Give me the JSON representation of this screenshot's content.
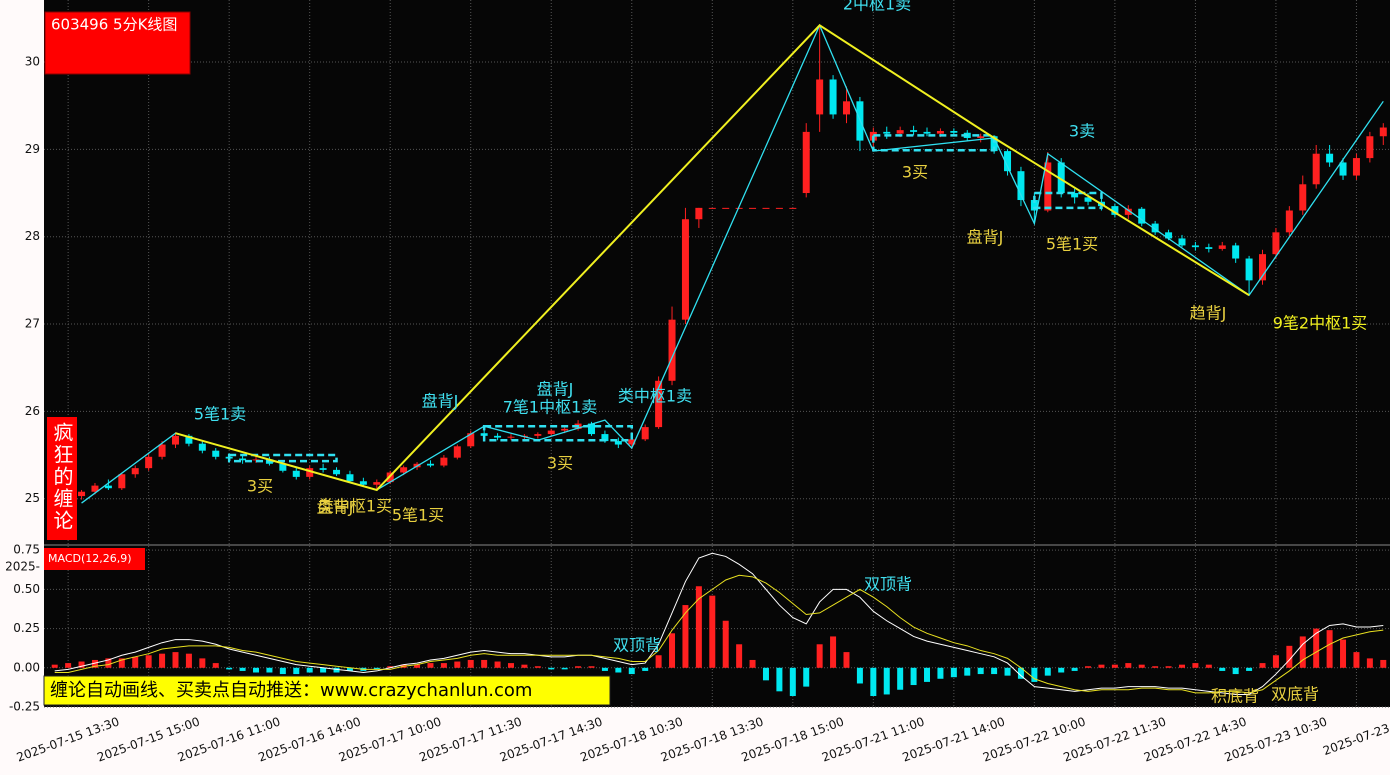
{
  "chart_data": [
    {
      "type": "candlestick",
      "title": "603496 5分K线图",
      "side_label": "疯狂的缠论",
      "categories": [
        null,
        "2025-07-15 13:30",
        null,
        null,
        null,
        null,
        null,
        "2025-07-15 15:00",
        null,
        null,
        null,
        null,
        null,
        "2025-07-16 11:00",
        null,
        null,
        null,
        null,
        null,
        "2025-07-16 14:00",
        null,
        null,
        null,
        null,
        null,
        "2025-07-17 10:00",
        null,
        null,
        null,
        null,
        null,
        "2025-07-17 11:30",
        null,
        null,
        null,
        null,
        null,
        "2025-07-17 14:30",
        null,
        null,
        null,
        null,
        null,
        "2025-07-18 10:30",
        null,
        null,
        null,
        null,
        null,
        "2025-07-18 13:30",
        null,
        null,
        null,
        null,
        null,
        "2025-07-18 15:00",
        null,
        null,
        null,
        null,
        null,
        "2025-07-21 11:00",
        null,
        null,
        null,
        null,
        null,
        "2025-07-21 14:00",
        null,
        null,
        null,
        null,
        null,
        "2025-07-22 10:00",
        null,
        null,
        null,
        null,
        null,
        "2025-07-22 11:30",
        null,
        null,
        null,
        null,
        null,
        "2025-07-22 14:30",
        null,
        null,
        null,
        null,
        null,
        "2025-07-23 10:30",
        null,
        null,
        null,
        null,
        null,
        "2025-07-23",
        null,
        null
      ],
      "open": [
        24.88,
        24.95,
        25.03,
        25.08,
        25.15,
        25.12,
        25.28,
        25.35,
        25.48,
        25.62,
        25.72,
        25.63,
        25.55,
        25.48,
        25.46,
        25.44,
        25.45,
        25.4,
        25.32,
        25.25,
        25.35,
        25.33,
        25.28,
        25.2,
        25.16,
        25.19,
        25.3,
        25.36,
        25.4,
        25.38,
        25.47,
        25.6,
        25.75,
        25.72,
        25.7,
        25.71,
        25.72,
        25.74,
        25.78,
        25.8,
        25.86,
        25.74,
        25.66,
        25.62,
        25.68,
        25.82,
        26.35,
        27.05,
        28.2,
        28.33,
        28.33,
        28.33,
        28.33,
        28.33,
        28.33,
        28.33,
        28.5,
        29.4,
        29.8,
        29.4,
        29.55,
        29.1,
        29.2,
        29.18,
        29.22,
        29.2,
        29.18,
        29.21,
        29.19,
        29.13,
        29.15,
        28.98,
        28.75,
        28.42,
        28.3,
        28.85,
        28.5,
        28.45,
        28.4,
        28.35,
        28.25,
        28.32,
        28.15,
        28.05,
        27.98,
        27.9,
        27.88,
        27.86,
        27.9,
        27.75,
        27.5,
        27.8,
        28.05,
        28.3,
        28.6,
        28.95,
        28.85,
        28.7,
        28.9,
        29.15
      ],
      "high": [
        24.98,
        25.06,
        25.1,
        25.18,
        25.22,
        25.3,
        25.38,
        25.52,
        25.66,
        25.76,
        25.74,
        25.66,
        25.58,
        25.52,
        25.5,
        25.49,
        25.48,
        25.43,
        25.36,
        25.38,
        25.4,
        25.36,
        25.32,
        25.24,
        25.22,
        25.32,
        25.38,
        25.42,
        25.44,
        25.5,
        25.62,
        25.78,
        25.84,
        25.75,
        25.74,
        25.74,
        25.76,
        25.8,
        25.83,
        25.9,
        25.88,
        25.78,
        25.7,
        25.7,
        25.85,
        26.4,
        27.2,
        28.33,
        28.33,
        28.33,
        28.33,
        28.33,
        28.33,
        28.33,
        28.33,
        28.33,
        29.3,
        30.42,
        29.85,
        29.72,
        29.6,
        29.25,
        29.26,
        29.26,
        29.27,
        29.25,
        29.24,
        29.24,
        29.22,
        29.18,
        29.16,
        29.0,
        28.8,
        28.5,
        28.97,
        28.9,
        28.55,
        28.5,
        28.46,
        28.38,
        28.36,
        28.34,
        28.18,
        28.08,
        28.02,
        27.94,
        27.92,
        27.94,
        27.93,
        27.78,
        27.85,
        28.1,
        28.35,
        28.7,
        29.05,
        29.05,
        28.9,
        28.95,
        29.2,
        29.3
      ],
      "low": [
        24.84,
        24.92,
        24.99,
        25.05,
        25.1,
        25.1,
        25.24,
        25.32,
        25.45,
        25.58,
        25.6,
        25.52,
        25.45,
        25.42,
        25.4,
        25.41,
        25.38,
        25.3,
        25.22,
        25.22,
        25.3,
        25.26,
        25.18,
        25.14,
        25.1,
        25.17,
        25.27,
        25.33,
        25.36,
        25.36,
        25.45,
        25.58,
        25.7,
        25.67,
        25.67,
        25.68,
        25.69,
        25.72,
        25.75,
        25.78,
        25.72,
        25.64,
        25.58,
        25.57,
        25.66,
        25.8,
        26.3,
        27.0,
        28.1,
        28.33,
        28.33,
        28.33,
        28.33,
        28.33,
        28.33,
        28.33,
        28.45,
        29.2,
        29.35,
        29.3,
        28.98,
        28.98,
        29.12,
        29.14,
        29.16,
        29.15,
        29.14,
        29.15,
        29.1,
        29.08,
        28.95,
        28.7,
        28.35,
        28.15,
        28.28,
        28.45,
        28.38,
        28.36,
        28.3,
        28.22,
        28.2,
        28.12,
        28.02,
        27.96,
        27.88,
        27.84,
        27.82,
        27.84,
        27.7,
        27.33,
        27.45,
        27.75,
        28.0,
        28.25,
        28.55,
        28.8,
        28.65,
        28.65,
        28.85,
        29.05
      ],
      "close": [
        24.95,
        25.03,
        25.08,
        25.15,
        25.12,
        25.28,
        25.35,
        25.48,
        25.62,
        25.72,
        25.63,
        25.55,
        25.48,
        25.46,
        25.44,
        25.45,
        25.4,
        25.32,
        25.25,
        25.35,
        25.33,
        25.28,
        25.2,
        25.16,
        25.19,
        25.3,
        25.36,
        25.4,
        25.38,
        25.47,
        25.6,
        25.75,
        25.72,
        25.7,
        25.71,
        25.72,
        25.74,
        25.78,
        25.8,
        25.86,
        25.74,
        25.66,
        25.62,
        25.68,
        25.82,
        26.35,
        27.05,
        28.2,
        28.33,
        28.33,
        28.33,
        28.33,
        28.33,
        28.33,
        28.33,
        28.33,
        29.2,
        29.8,
        29.4,
        29.55,
        29.1,
        29.2,
        29.18,
        29.22,
        29.2,
        29.18,
        29.21,
        29.19,
        29.13,
        29.15,
        28.98,
        28.75,
        28.42,
        28.3,
        28.85,
        28.5,
        28.45,
        28.4,
        28.35,
        28.25,
        28.32,
        28.15,
        28.05,
        27.98,
        27.9,
        27.88,
        27.86,
        27.9,
        27.75,
        27.5,
        27.8,
        28.05,
        28.3,
        28.6,
        28.95,
        28.85,
        28.7,
        28.9,
        29.15,
        29.25
      ],
      "up_color": "#ff2020",
      "down_color": "#00e8f0",
      "ylim": [
        24.47,
        30.71
      ],
      "yticks": [
        25,
        26,
        27,
        28,
        29,
        30
      ],
      "grid": true,
      "strokes": [
        {
          "color": "#30e0f0",
          "x": [
            2,
            9,
            24,
            32,
            36,
            41,
            43,
            57,
            61,
            70,
            73,
            74,
            89,
            99
          ],
          "y": [
            24.95,
            25.75,
            25.1,
            25.83,
            25.67,
            25.9,
            25.58,
            30.42,
            28.98,
            29.13,
            28.15,
            28.95,
            27.33,
            29.55
          ]
        },
        {
          "color": "#f0f020",
          "x": [
            9,
            24,
            57,
            70,
            89
          ],
          "y": [
            25.75,
            25.1,
            30.42,
            29.13,
            27.33
          ]
        }
      ],
      "zhongshu_color": "#30e0f0",
      "zhongshu": [
        {
          "start": 13,
          "end": 21,
          "low": 25.43,
          "high": 25.5
        },
        {
          "start": 32,
          "end": 43,
          "low": 25.67,
          "high": 25.83
        },
        {
          "start": 61,
          "end": 70,
          "low": 28.99,
          "high": 29.16
        },
        {
          "start": 73,
          "end": 78,
          "low": 28.33,
          "high": 28.5
        }
      ],
      "annotations": [
        {
          "text": "2中枢1卖",
          "color": "#40e0f0"
        },
        {
          "text": "3卖",
          "color": "#40e0f0"
        },
        {
          "text": "5笔1卖",
          "color": "#40e0f0"
        },
        {
          "text": "盘背J",
          "color": "#40e0f0"
        },
        {
          "text": "盘背J",
          "color": "#40e0f0"
        },
        {
          "text": "7笔1中枢1卖",
          "color": "#40e0f0"
        },
        {
          "text": "类中枢1卖",
          "color": "#40e0f0"
        },
        {
          "text": "3买",
          "color": "#e8d040"
        },
        {
          "text": "盘背J",
          "color": "#e8d040"
        },
        {
          "text": "5笔1买",
          "color": "#e8d040"
        },
        {
          "text": "趋背J",
          "color": "#e8d040"
        },
        {
          "text": "9笔2中枢1买",
          "color": "#f0f020"
        },
        {
          "text": "3买",
          "color": "#e8d040"
        },
        {
          "text": "3买",
          "color": "#e8d040"
        },
        {
          "text": "盘背J",
          "color": "#e8d040"
        },
        {
          "text": "类中枢1买",
          "color": "#e8d040"
        },
        {
          "text": "5笔1买",
          "color": "#e8d040"
        }
      ]
    },
    {
      "type": "macd",
      "title": "MACD(12,26,9)",
      "axis_stub": "2025-",
      "ylim": [
        -0.25,
        0.783
      ],
      "yticks": [
        -0.25,
        {
          "value": 0,
          "label": "0.00"
        },
        0.25,
        {
          "value": 0.5,
          "label": "0.50"
        },
        0.75
      ],
      "grid": true,
      "histogram": {
        "up_color": "#ff2020",
        "down_color": "#00e8f0",
        "values": [
          0.02,
          0.03,
          0.04,
          0.05,
          0.06,
          0.06,
          0.07,
          0.08,
          0.09,
          0.1,
          0.09,
          0.06,
          0.03,
          -0.01,
          -0.02,
          -0.03,
          -0.03,
          -0.04,
          -0.04,
          -0.03,
          -0.03,
          -0.03,
          -0.02,
          -0.02,
          -0.01,
          0.01,
          0.02,
          0.02,
          0.03,
          0.03,
          0.04,
          0.05,
          0.05,
          0.04,
          0.03,
          0.02,
          0.01,
          -0.01,
          -0.01,
          0.01,
          0.01,
          -0.02,
          -0.03,
          -0.04,
          -0.02,
          0.08,
          0.22,
          0.4,
          0.52,
          0.46,
          0.3,
          0.15,
          0.05,
          -0.08,
          -0.15,
          -0.18,
          -0.12,
          0.15,
          0.2,
          0.1,
          -0.1,
          -0.18,
          -0.17,
          -0.14,
          -0.11,
          -0.09,
          -0.07,
          -0.06,
          -0.05,
          -0.04,
          -0.04,
          -0.05,
          -0.07,
          -0.09,
          -0.05,
          -0.03,
          -0.02,
          0.01,
          0.02,
          0.02,
          0.03,
          0.02,
          0.01,
          0.01,
          0.02,
          0.03,
          0.02,
          -0.02,
          -0.04,
          -0.02,
          0.03,
          0.08,
          0.14,
          0.2,
          0.25,
          0.24,
          0.18,
          0.1,
          0.06,
          0.05
        ]
      },
      "series": [
        {
          "color": "#ffffff",
          "values": [
            -0.02,
            -0.01,
            0.01,
            0.03,
            0.05,
            0.08,
            0.1,
            0.13,
            0.16,
            0.18,
            0.18,
            0.17,
            0.15,
            0.12,
            0.1,
            0.08,
            0.06,
            0.04,
            0.02,
            0.01,
            0.0,
            -0.01,
            -0.02,
            -0.03,
            -0.02,
            0.0,
            0.02,
            0.03,
            0.05,
            0.06,
            0.08,
            0.1,
            0.11,
            0.1,
            0.09,
            0.09,
            0.08,
            0.07,
            0.07,
            0.08,
            0.08,
            0.06,
            0.04,
            0.02,
            0.03,
            0.15,
            0.35,
            0.55,
            0.7,
            0.73,
            0.71,
            0.66,
            0.6,
            0.5,
            0.4,
            0.32,
            0.28,
            0.42,
            0.5,
            0.5,
            0.45,
            0.36,
            0.3,
            0.25,
            0.2,
            0.17,
            0.15,
            0.13,
            0.11,
            0.09,
            0.07,
            0.03,
            -0.05,
            -0.12,
            -0.13,
            -0.14,
            -0.15,
            -0.14,
            -0.13,
            -0.13,
            -0.12,
            -0.12,
            -0.12,
            -0.13,
            -0.13,
            -0.14,
            -0.15,
            -0.16,
            -0.17,
            -0.17,
            -0.12,
            -0.04,
            0.05,
            0.15,
            0.22,
            0.27,
            0.28,
            0.26,
            0.26,
            0.27
          ]
        },
        {
          "color": "#e8e020",
          "values": [
            -0.03,
            -0.03,
            -0.01,
            0.01,
            0.02,
            0.05,
            0.07,
            0.09,
            0.12,
            0.13,
            0.14,
            0.14,
            0.14,
            0.13,
            0.11,
            0.1,
            0.08,
            0.06,
            0.04,
            0.03,
            0.02,
            0.01,
            0.0,
            -0.01,
            -0.01,
            -0.01,
            0.01,
            0.02,
            0.04,
            0.05,
            0.06,
            0.08,
            0.09,
            0.08,
            0.08,
            0.08,
            0.08,
            0.08,
            0.08,
            0.08,
            0.08,
            0.07,
            0.06,
            0.04,
            0.04,
            0.11,
            0.24,
            0.35,
            0.44,
            0.5,
            0.56,
            0.59,
            0.58,
            0.54,
            0.48,
            0.41,
            0.34,
            0.35,
            0.4,
            0.45,
            0.5,
            0.45,
            0.39,
            0.32,
            0.26,
            0.22,
            0.19,
            0.16,
            0.14,
            0.11,
            0.09,
            0.06,
            0.0,
            -0.07,
            -0.1,
            -0.12,
            -0.14,
            -0.15,
            -0.14,
            -0.14,
            -0.14,
            -0.13,
            -0.13,
            -0.14,
            -0.14,
            -0.16,
            -0.16,
            -0.15,
            -0.15,
            -0.16,
            -0.14,
            -0.08,
            -0.02,
            0.05,
            0.1,
            0.15,
            0.19,
            0.21,
            0.23,
            0.24
          ]
        }
      ],
      "annotations": [
        {
          "text": "双顶背",
          "color": "#40e0f0"
        },
        {
          "text": "双顶背",
          "color": "#40e0f0"
        },
        {
          "text": "积底背",
          "color": "#e8d040"
        },
        {
          "text": "双底背",
          "color": "#e8d040"
        }
      ],
      "banner": "缠论自动画线、买卖点自动推送：www.crazychanlun.com"
    }
  ]
}
